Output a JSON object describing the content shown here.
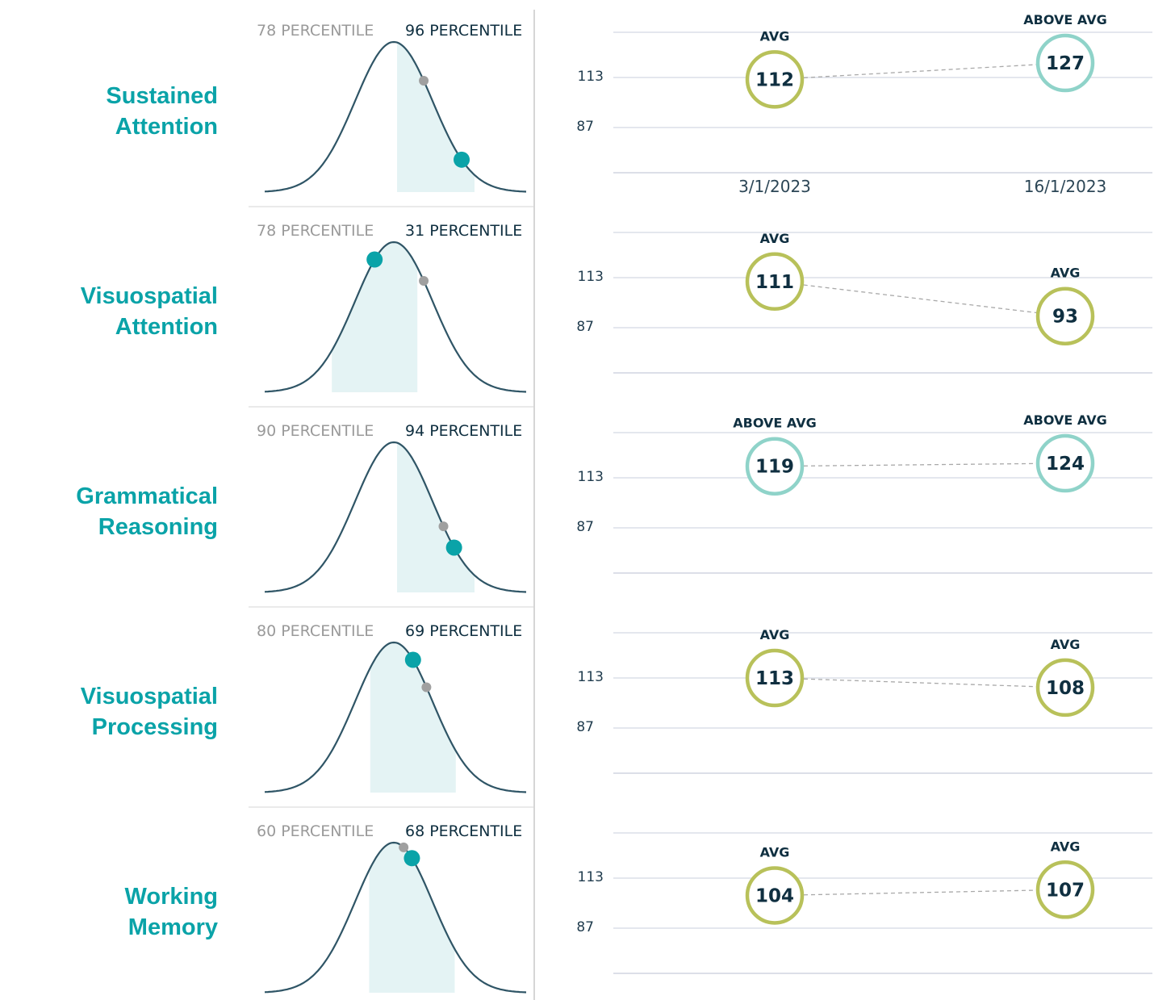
{
  "chart_data": [
    {
      "type": "line",
      "title": "Sustained Attention",
      "percentiles": [
        "78 PERCENTILE",
        "96 PERCENTILE"
      ],
      "previous_percentile": 78,
      "current_percentile": 96,
      "x": [
        "3/1/2023",
        "16/1/2023"
      ],
      "x_labels_visible": true,
      "yticks": [
        113,
        87
      ],
      "points": [
        {
          "date": "3/1/2023",
          "score": 112,
          "label": "AVG"
        },
        {
          "date": "16/1/2023",
          "score": 127,
          "label": "ABOVE AVG"
        }
      ]
    },
    {
      "type": "line",
      "title": "Visuospatial Attention",
      "percentiles": [
        "78 PERCENTILE",
        "31 PERCENTILE"
      ],
      "previous_percentile": 78,
      "current_percentile": 31,
      "x": [
        "3/1/2023",
        "16/1/2023"
      ],
      "x_labels_visible": false,
      "yticks": [
        113,
        87
      ],
      "points": [
        {
          "date": "3/1/2023",
          "score": 111,
          "label": "AVG"
        },
        {
          "date": "16/1/2023",
          "score": 93,
          "label": "AVG"
        }
      ]
    },
    {
      "type": "line",
      "title": "Grammatical Reasoning",
      "percentiles": [
        "90 PERCENTILE",
        "94 PERCENTILE"
      ],
      "previous_percentile": 90,
      "current_percentile": 94,
      "x": [
        "3/1/2023",
        "16/1/2023"
      ],
      "x_labels_visible": false,
      "yticks": [
        113,
        87
      ],
      "points": [
        {
          "date": "3/1/2023",
          "score": 119,
          "label": "ABOVE AVG"
        },
        {
          "date": "16/1/2023",
          "score": 124,
          "label": "ABOVE AVG"
        }
      ]
    },
    {
      "type": "line",
      "title": "Visuospatial Processing",
      "percentiles": [
        "80 PERCENTILE",
        "69 PERCENTILE"
      ],
      "previous_percentile": 80,
      "current_percentile": 69,
      "x": [
        "3/1/2023",
        "16/1/2023"
      ],
      "x_labels_visible": false,
      "yticks": [
        113,
        87
      ],
      "points": [
        {
          "date": "3/1/2023",
          "score": 113,
          "label": "AVG"
        },
        {
          "date": "16/1/2023",
          "score": 108,
          "label": "AVG"
        }
      ]
    },
    {
      "type": "line",
      "title": "Working Memory",
      "percentiles": [
        "60 PERCENTILE",
        "68 PERCENTILE"
      ],
      "previous_percentile": 60,
      "current_percentile": 68,
      "x": [
        "3/1/2023",
        "16/1/2023"
      ],
      "x_labels_visible": false,
      "yticks": [
        113,
        87
      ],
      "points": [
        {
          "date": "3/1/2023",
          "score": 104,
          "label": "AVG"
        },
        {
          "date": "16/1/2023",
          "score": 107,
          "label": "AVG"
        }
      ]
    }
  ],
  "colors": {
    "teal": "#0aa3a8",
    "curve": "#2f5566",
    "shade": "#e4f3f4",
    "previous_dot": "#a0a0a0",
    "avg_ring": "#b8c15a",
    "above_avg_ring": "#8fd3c9",
    "grid": "#dcdfe8",
    "muted_text": "#9a9a9a",
    "dark_text": "#0f2f40"
  }
}
